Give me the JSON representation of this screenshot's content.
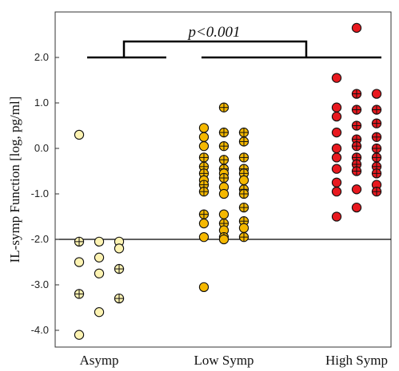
{
  "chart_data": {
    "type": "scatter",
    "title": "",
    "xlabel": "",
    "ylabel": "IL-symp Function [log, pg/ml]",
    "ylim": [
      -4.4,
      3.2
    ],
    "yticks": [
      2.0,
      1.0,
      0.0,
      -1.0,
      -2.0,
      -3.0,
      -4.0
    ],
    "ytick_labels": [
      "2.0",
      "1.0",
      "0.0",
      "-1.0",
      "-2.0",
      "-3.0",
      "-4.0"
    ],
    "categories": [
      "Asymp",
      "Low Symp",
      "High Symp"
    ],
    "threshold_line": -2.0,
    "grid": false,
    "annotation": {
      "text": "p<0.001",
      "between": "Asymp vs Low Symp + High Symp"
    },
    "series": [
      {
        "category": "Asymp",
        "color": "#fdf3b2",
        "columns": [
          [
            {
              "y": 0.3,
              "m": 0
            },
            {
              "y": -2.05,
              "m": 1
            },
            {
              "y": -2.5,
              "m": 0
            },
            {
              "y": -3.2,
              "m": 1
            },
            {
              "y": -4.1,
              "m": 0
            }
          ],
          [
            {
              "y": -2.05,
              "m": 0
            },
            {
              "y": -2.4,
              "m": 0
            },
            {
              "y": -2.75,
              "m": 0
            },
            {
              "y": -3.6,
              "m": 0
            }
          ],
          [
            {
              "y": -2.05,
              "m": 0
            },
            {
              "y": -2.2,
              "m": 0
            },
            {
              "y": -2.65,
              "m": 1
            },
            {
              "y": -3.3,
              "m": 1
            }
          ]
        ]
      },
      {
        "category": "Low Symp",
        "color": "#f5b800",
        "columns": [
          [
            {
              "y": 0.45,
              "m": 0
            },
            {
              "y": 0.25,
              "m": 0
            },
            {
              "y": 0.05,
              "m": 0
            },
            {
              "y": -0.2,
              "m": 1
            },
            {
              "y": -0.4,
              "m": 1
            },
            {
              "y": -0.55,
              "m": 1
            },
            {
              "y": -0.7,
              "m": 0
            },
            {
              "y": -0.8,
              "m": 1
            },
            {
              "y": -0.95,
              "m": 1
            },
            {
              "y": -1.45,
              "m": 1
            },
            {
              "y": -1.65,
              "m": 0
            },
            {
              "y": -1.95,
              "m": 0
            },
            {
              "y": -3.05,
              "m": 0
            }
          ],
          [
            {
              "y": 0.9,
              "m": 1
            },
            {
              "y": 0.35,
              "m": 1
            },
            {
              "y": 0.05,
              "m": 1
            },
            {
              "y": -0.25,
              "m": 1
            },
            {
              "y": -0.45,
              "m": 1
            },
            {
              "y": -0.55,
              "m": 0
            },
            {
              "y": -0.65,
              "m": 1
            },
            {
              "y": -0.85,
              "m": 0
            },
            {
              "y": -1.0,
              "m": 0
            },
            {
              "y": -1.45,
              "m": 0
            },
            {
              "y": -1.65,
              "m": 1
            },
            {
              "y": -1.8,
              "m": 0
            },
            {
              "y": -1.95,
              "m": 1
            },
            {
              "y": -2.0,
              "m": 0
            }
          ],
          [
            {
              "y": 0.35,
              "m": 1
            },
            {
              "y": 0.15,
              "m": 1
            },
            {
              "y": -0.2,
              "m": 1
            },
            {
              "y": -0.45,
              "m": 1
            },
            {
              "y": -0.55,
              "m": 1
            },
            {
              "y": -0.7,
              "m": 0
            },
            {
              "y": -0.9,
              "m": 1
            },
            {
              "y": -1.0,
              "m": 1
            },
            {
              "y": -1.3,
              "m": 1
            },
            {
              "y": -1.6,
              "m": 1
            },
            {
              "y": -1.75,
              "m": 0
            },
            {
              "y": -1.95,
              "m": 1
            }
          ]
        ]
      },
      {
        "category": "High Symp",
        "color": "#e8191f",
        "columns": [
          [
            {
              "y": 1.55,
              "m": 0
            },
            {
              "y": 0.9,
              "m": 0
            },
            {
              "y": 0.7,
              "m": 0
            },
            {
              "y": 0.35,
              "m": 0
            },
            {
              "y": 0.0,
              "m": 0
            },
            {
              "y": -0.2,
              "m": 0
            },
            {
              "y": -0.45,
              "m": 0
            },
            {
              "y": -0.75,
              "m": 0
            },
            {
              "y": -0.95,
              "m": 0
            },
            {
              "y": -1.5,
              "m": 0
            }
          ],
          [
            {
              "y": 2.65,
              "m": 0
            },
            {
              "y": 1.2,
              "m": 1
            },
            {
              "y": 0.85,
              "m": 1
            },
            {
              "y": 0.5,
              "m": 1
            },
            {
              "y": 0.2,
              "m": 1
            },
            {
              "y": 0.05,
              "m": 1
            },
            {
              "y": -0.2,
              "m": 1
            },
            {
              "y": -0.35,
              "m": 1
            },
            {
              "y": -0.5,
              "m": 1
            },
            {
              "y": -0.9,
              "m": 0
            },
            {
              "y": -1.3,
              "m": 0
            }
          ],
          [
            {
              "y": 1.2,
              "m": 0
            },
            {
              "y": 0.85,
              "m": 1
            },
            {
              "y": 0.55,
              "m": 1
            },
            {
              "y": 0.25,
              "m": 1
            },
            {
              "y": 0.0,
              "m": 1
            },
            {
              "y": -0.2,
              "m": 1
            },
            {
              "y": -0.4,
              "m": 1
            },
            {
              "y": -0.55,
              "m": 1
            },
            {
              "y": -0.8,
              "m": 0
            },
            {
              "y": -0.95,
              "m": 1
            }
          ]
        ]
      }
    ]
  }
}
